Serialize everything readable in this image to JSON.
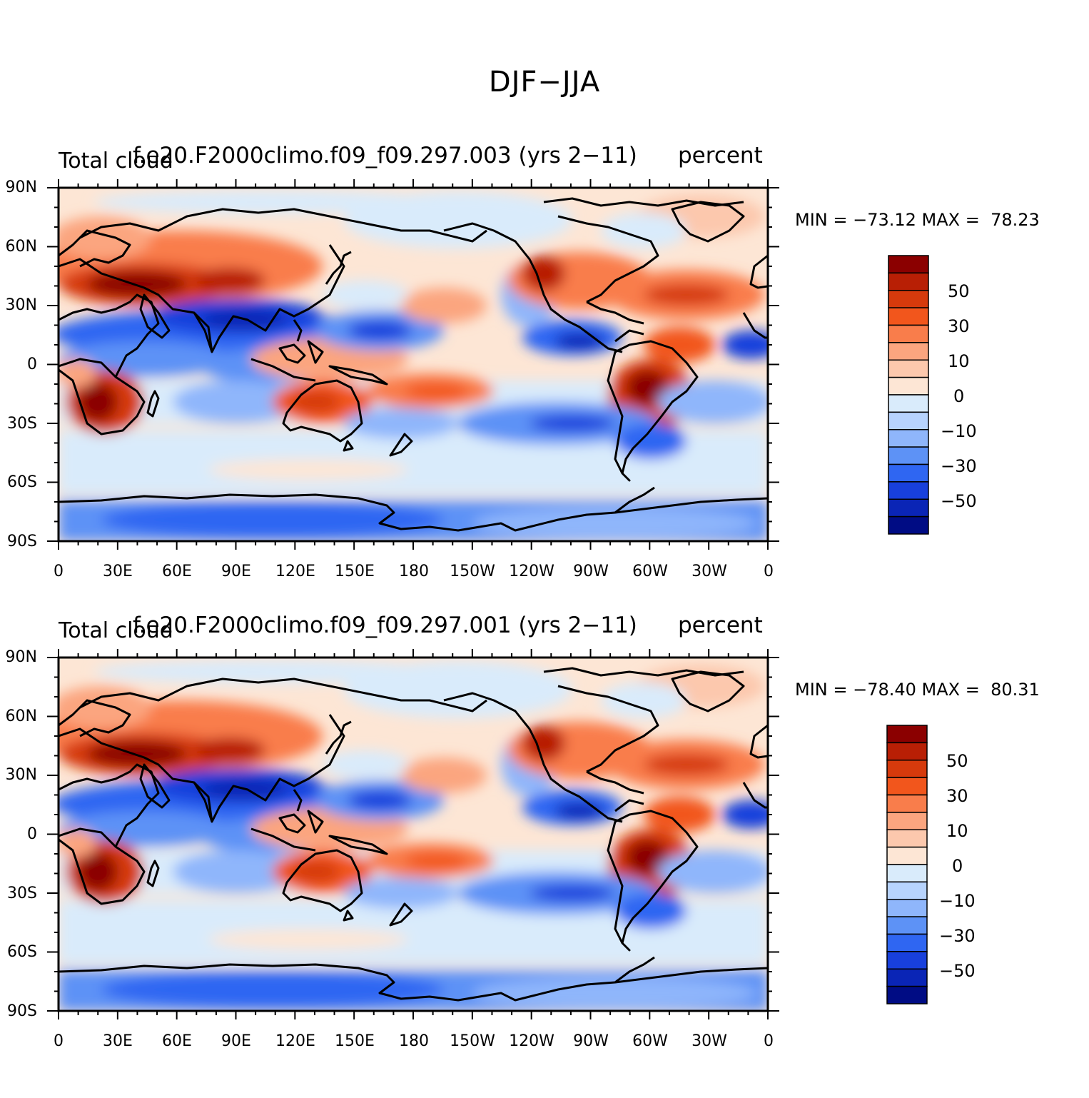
{
  "main_title": "DJF−JJA",
  "panels": [
    {
      "left_title": "Total cloud",
      "center_title": "f.e20.F2000climo.f09_f09.297.003 (yrs 2−11)",
      "right_title": "percent",
      "minmax": "MIN = −73.12 MAX =  78.23",
      "min": -73.12,
      "max": 78.23
    },
    {
      "left_title": "Total cloud",
      "center_title": "f.e20.F2000climo.f09_f09.297.001 (yrs 2−11)",
      "right_title": "percent",
      "minmax": "MIN = −78.40 MAX =  80.31",
      "min": -78.4,
      "max": 80.31
    }
  ],
  "axes": {
    "y_ticks": [
      "90N",
      "60N",
      "30N",
      "0",
      "30S",
      "60S",
      "90S"
    ],
    "x_ticks": [
      "0",
      "30E",
      "60E",
      "90E",
      "120E",
      "150E",
      "180",
      "150W",
      "120W",
      "90W",
      "60W",
      "30W",
      "0"
    ]
  },
  "colorbar": {
    "labels": [
      "50",
      "30",
      "10",
      "0",
      "−10",
      "−30",
      "−50"
    ],
    "colors": [
      "#8b0000",
      "#b81f05",
      "#d63a0c",
      "#f2561c",
      "#f97d4b",
      "#fba57f",
      "#fcc8ad",
      "#fde6d5",
      "#d9ebfb",
      "#b7d3fd",
      "#8fb6fb",
      "#5d92f6",
      "#2f66f2",
      "#1840dc",
      "#0a25b6",
      "#000c84"
    ]
  },
  "chart_data": {
    "type": "heatmap",
    "title": "DJF−JJA",
    "variable": "Total cloud",
    "units": "percent",
    "x_ticks": [
      "0",
      "30E",
      "60E",
      "90E",
      "120E",
      "150E",
      "180",
      "150W",
      "120W",
      "90W",
      "60W",
      "30W",
      "0"
    ],
    "y_ticks": [
      "90N",
      "60N",
      "30N",
      "0",
      "30S",
      "60S",
      "90S"
    ],
    "colorbar_levels": [
      "50",
      "30",
      "10",
      "0",
      "−10",
      "−30",
      "−50"
    ],
    "panels": [
      {
        "case": "f.e20.F2000climo.f09_f09.297.003 (yrs 2−11)",
        "min": -73.12,
        "max": 78.23
      },
      {
        "case": "f.e20.F2000climo.f09_f09.297.001 (yrs 2−11)",
        "min": -78.4,
        "max": 80.31
      }
    ]
  }
}
